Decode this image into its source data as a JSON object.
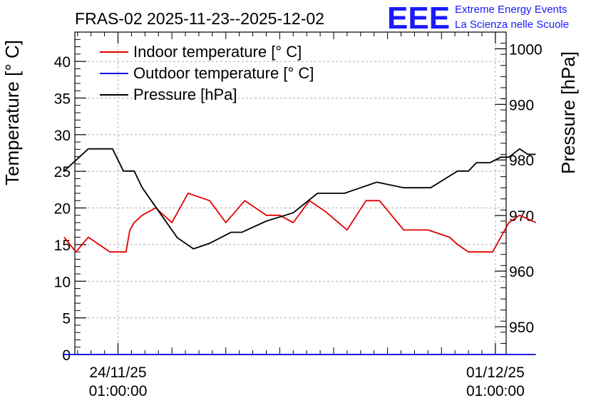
{
  "chart_data": {
    "type": "line",
    "title": "FRAS-02 2025-11-23--2025-12-02",
    "ylabel_left": "Temperature [° C]",
    "ylabel_right": "Pressure [hPa]",
    "xlabel": "",
    "ylim_left": [
      0,
      44
    ],
    "ylim_right": [
      945,
      1003
    ],
    "yticks_left": [
      0,
      5,
      10,
      15,
      20,
      25,
      30,
      35,
      40
    ],
    "yticks_right": [
      950,
      960,
      970,
      980,
      990,
      1000
    ],
    "grid": true,
    "legend_position": "top-left",
    "x_range_days": [
      -0.8,
      7.2
    ],
    "x_tick_labels": [
      {
        "day": 0,
        "line1": "24/11/25",
        "line2": "01:00:00"
      },
      {
        "day": 7,
        "line1": "01/12/25",
        "line2": "01:00:00"
      }
    ],
    "series": [
      {
        "name": "Indoor temperature [° C]",
        "axis": "left",
        "color": "#e00000",
        "x": [
          -1.0,
          -0.78,
          -0.55,
          -0.15,
          0.15,
          0.22,
          0.3,
          0.45,
          0.7,
          1.0,
          1.3,
          1.7,
          2.0,
          2.35,
          2.75,
          3.0,
          3.25,
          3.55,
          3.85,
          4.25,
          4.6,
          4.85,
          5.3,
          5.55,
          5.75,
          6.15,
          6.3,
          6.5,
          6.95,
          7.25,
          7.45,
          7.75
        ],
        "values": [
          16,
          14,
          16,
          14,
          14,
          17,
          18,
          19,
          20,
          18,
          22,
          21,
          18,
          21,
          19,
          19,
          18,
          21,
          19.5,
          17,
          21,
          21,
          17,
          17,
          17,
          16,
          15,
          14,
          14,
          18,
          19,
          18
        ]
      },
      {
        "name": "Outdoor temperature [° C]",
        "axis": "left",
        "color": "#0000e0",
        "x": [
          -1.0,
          7.75
        ],
        "values": [
          0,
          0
        ]
      },
      {
        "name": "Pressure [hPa]",
        "axis": "right",
        "color": "#000000",
        "x": [
          -1.0,
          -0.55,
          -0.1,
          0.1,
          0.3,
          0.45,
          1.1,
          1.4,
          1.7,
          2.1,
          2.3,
          2.75,
          3.25,
          3.7,
          4.2,
          4.5,
          4.8,
          5.3,
          5.6,
          5.8,
          6.3,
          6.5,
          6.65,
          6.9,
          7.1,
          7.25,
          7.45,
          7.6,
          7.75
        ],
        "values": [
          978,
          982,
          982,
          978,
          978,
          975,
          966,
          964,
          965,
          967,
          967,
          969,
          970.5,
          974,
          974,
          975,
          976,
          975,
          975,
          975,
          978,
          978,
          979.5,
          979.5,
          980.5,
          980.5,
          982,
          981,
          981
        ]
      }
    ]
  },
  "logo": {
    "big_text": "EEE",
    "line1": "Extreme Energy Events",
    "line2": "La Scienza nelle Scuole"
  }
}
